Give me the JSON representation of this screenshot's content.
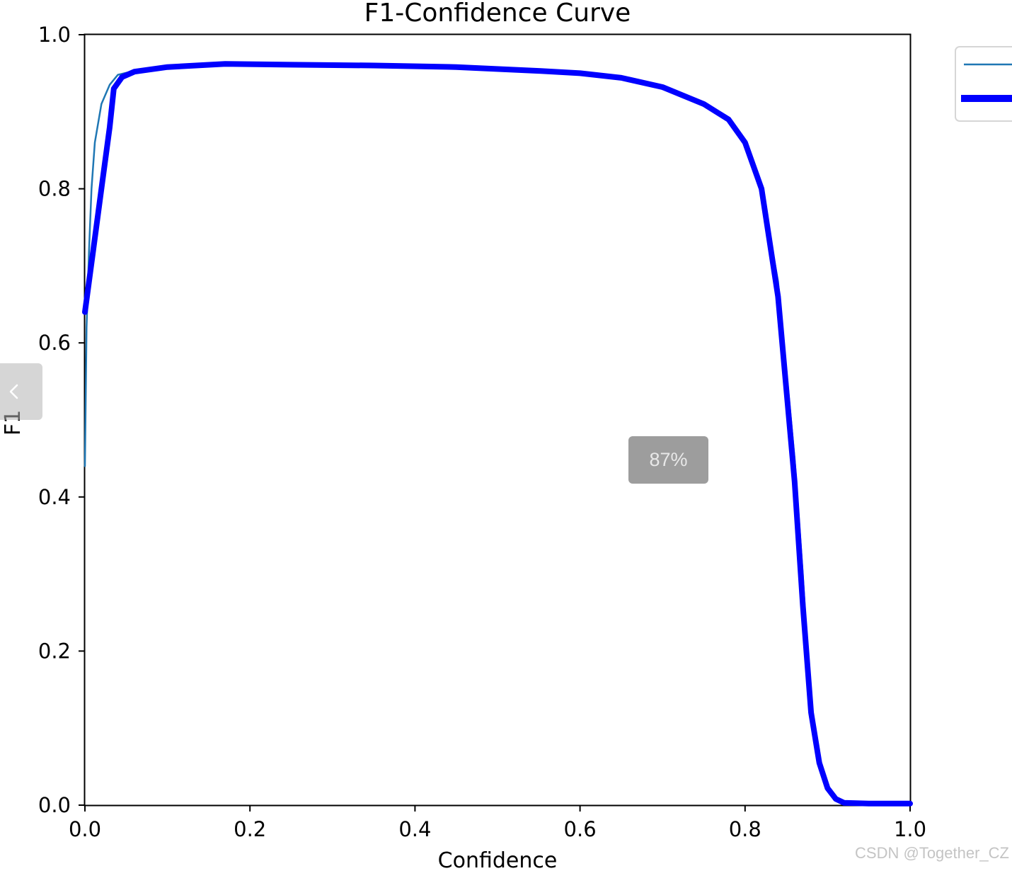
{
  "viewer": {
    "zoom_level": "87%",
    "watermark": "CSDN @Together_CZ",
    "prev_icon": "chevron-left-icon"
  },
  "chart_data": {
    "type": "line",
    "title": "F1-Confidence Curve",
    "xlabel": "Confidence",
    "ylabel": "F1",
    "xlim": [
      0.0,
      1.0
    ],
    "ylim": [
      0.0,
      1.0
    ],
    "xticks": [
      "0.0",
      "0.2",
      "0.4",
      "0.6",
      "0.8",
      "1.0"
    ],
    "yticks": [
      "0.0",
      "0.2",
      "0.4",
      "0.6",
      "0.8",
      "1.0"
    ],
    "grid": false,
    "legend_position": "top-right",
    "series": [
      {
        "color": "#1f77b4",
        "x": [
          0.0,
          0.002,
          0.005,
          0.008,
          0.012,
          0.02,
          0.03,
          0.04,
          0.06,
          0.1,
          0.17,
          0.25,
          0.35,
          0.45,
          0.55,
          0.6,
          0.65,
          0.7,
          0.75,
          0.78,
          0.8,
          0.82,
          0.84,
          0.86,
          0.87,
          0.88,
          0.89,
          0.9,
          0.91,
          0.92,
          0.95,
          1.0
        ],
        "y": [
          0.44,
          0.62,
          0.72,
          0.8,
          0.86,
          0.91,
          0.935,
          0.948,
          0.953,
          0.958,
          0.962,
          0.961,
          0.96,
          0.958,
          0.953,
          0.95,
          0.944,
          0.932,
          0.91,
          0.89,
          0.86,
          0.8,
          0.68,
          0.45,
          0.3,
          0.12,
          0.05,
          0.02,
          0.01,
          0.004,
          0.002,
          0.001
        ]
      },
      {
        "color": "#0000ff",
        "x": [
          0.0,
          0.01,
          0.02,
          0.03,
          0.035,
          0.045,
          0.06,
          0.1,
          0.17,
          0.25,
          0.35,
          0.45,
          0.55,
          0.6,
          0.65,
          0.7,
          0.75,
          0.78,
          0.8,
          0.82,
          0.84,
          0.86,
          0.87,
          0.88,
          0.89,
          0.9,
          0.91,
          0.92,
          0.95,
          1.0
        ],
        "y": [
          0.64,
          0.72,
          0.8,
          0.88,
          0.93,
          0.945,
          0.952,
          0.958,
          0.962,
          0.961,
          0.96,
          0.958,
          0.953,
          0.95,
          0.944,
          0.932,
          0.91,
          0.89,
          0.86,
          0.8,
          0.66,
          0.42,
          0.26,
          0.12,
          0.055,
          0.022,
          0.008,
          0.003,
          0.002,
          0.002
        ]
      }
    ]
  }
}
